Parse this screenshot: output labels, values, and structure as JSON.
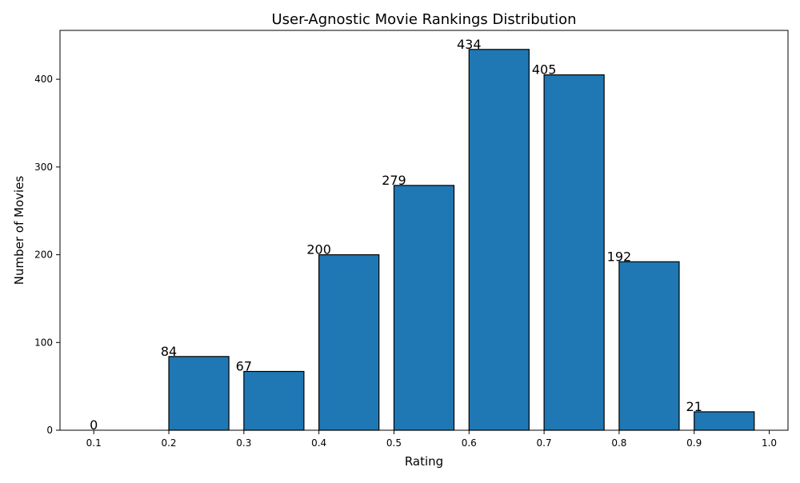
{
  "chart_data": {
    "type": "bar",
    "title": "User-Agnostic Movie Rankings Distribution",
    "xlabel": "Rating",
    "ylabel": "Number of Movies",
    "bin_starts": [
      0.1,
      0.2,
      0.3,
      0.4,
      0.5,
      0.6,
      0.7,
      0.8,
      0.9
    ],
    "bin_width": 0.08,
    "values": [
      0,
      84,
      67,
      200,
      279,
      434,
      405,
      192,
      21
    ],
    "data_labels": [
      "0",
      "84",
      "67",
      "200",
      "279",
      "434",
      "405",
      "192",
      "21"
    ],
    "xticks": [
      "0.1",
      "0.2",
      "0.3",
      "0.4",
      "0.5",
      "0.6",
      "0.7",
      "0.8",
      "0.9",
      "1.0"
    ],
    "yticks": [
      "0",
      "100",
      "200",
      "300",
      "400"
    ],
    "xlim": [
      0.055,
      1.025
    ],
    "ylim": [
      0,
      455.7
    ],
    "grid": false,
    "bar_color": "#1f77b4",
    "edge_color": "#000000"
  }
}
